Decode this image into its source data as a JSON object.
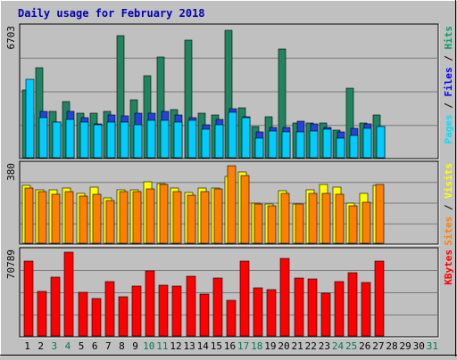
{
  "chart_data": {
    "type": "bar",
    "title": "Daily usage for February 2018",
    "x": [
      "1",
      "2",
      "3",
      "4",
      "5",
      "6",
      "7",
      "8",
      "9",
      "10",
      "11",
      "12",
      "13",
      "14",
      "15",
      "16",
      "17",
      "18",
      "19",
      "20",
      "21",
      "22",
      "23",
      "24",
      "25",
      "26",
      "27",
      "28",
      "29",
      "30",
      "31"
    ],
    "weekend_days": [
      "3",
      "4",
      "10",
      "11",
      "17",
      "18",
      "24",
      "25",
      "31"
    ],
    "panels": [
      {
        "name": "hits_files_pages",
        "ymax": 6703,
        "ymax_label": "6703",
        "right_label": [
          {
            "text": "Pages",
            "color": "#00e0ff"
          },
          {
            "text": " / ",
            "color": "#000000"
          },
          {
            "text": "Files",
            "color": "#0000ff"
          },
          {
            "text": " / ",
            "color": "#000000"
          },
          {
            "text": "Hits",
            "color": "#00a060"
          }
        ],
        "series": [
          {
            "name": "Hits",
            "color": "#1f8560",
            "values": [
              3500,
              4650,
              2420,
              2920,
              2320,
              2320,
              2420,
              6350,
              3000,
              4260,
              5240,
              2500,
              6100,
              2320,
              2220,
              6600,
              2600,
              1620,
              2120,
              5650,
              1820,
              1820,
              1820,
              1420,
              3600,
              1820,
              2200,
              null,
              null,
              null,
              null
            ]
          },
          {
            "name": "Files",
            "color": "#2244dd",
            "values": [
              2250,
              2400,
              1850,
              2400,
              2100,
              1750,
              2200,
              2180,
              2300,
              2300,
              2400,
              2200,
              2100,
              1700,
              2000,
              2520,
              2120,
              1350,
              1560,
              1560,
              1900,
              1740,
              1560,
              1340,
              1540,
              1740,
              1620,
              null,
              null,
              null,
              null
            ]
          },
          {
            "name": "Pages",
            "color": "#00ccff",
            "values": [
              4050,
              2100,
              1870,
              2000,
              1870,
              1700,
              1870,
              1830,
              1710,
              1930,
              1930,
              1870,
              1920,
              1500,
              1700,
              2360,
              2060,
              1000,
              1400,
              1340,
              1360,
              1400,
              1460,
              1000,
              1140,
              1540,
              1600,
              null,
              null,
              null,
              null
            ]
          }
        ]
      },
      {
        "name": "visits_sites",
        "ymax": 380,
        "ymax_label": "380",
        "right_label": [
          {
            "text": "Sites",
            "color": "#ff8000"
          },
          {
            "text": " / ",
            "color": "#000000"
          },
          {
            "text": "Visits",
            "color": "#ffff00"
          }
        ],
        "series": [
          {
            "name": "Visits",
            "color": "#ffff00",
            "values": [
              282,
              263,
              263,
              270,
              243,
              275,
              224,
              262,
              263,
              302,
              294,
              270,
              250,
              270,
              270,
              328,
              350,
              197,
              193,
              256,
              193,
              260,
              287,
              273,
              196,
              243,
              283,
              null,
              null,
              null,
              null
            ]
          },
          {
            "name": "Sites",
            "color": "#ff8000",
            "values": [
              270,
              255,
              240,
              255,
              233,
              242,
              210,
              255,
              255,
              268,
              290,
              255,
              235,
              253,
              265,
              380,
              330,
              190,
              185,
              243,
              190,
              246,
              243,
              240,
              183,
              200,
              290,
              null,
              null,
              null,
              null
            ]
          }
        ]
      },
      {
        "name": "kbytes",
        "ymax": 70789,
        "ymax_label": "70789",
        "right_label": [
          {
            "text": "KBytes",
            "color": "#ff0000"
          }
        ],
        "series": [
          {
            "name": "KBytes",
            "color": "#ff0000",
            "values": [
              63000,
              37600,
              49600,
              71000,
              36700,
              31500,
              45600,
              33000,
              42000,
              54700,
              43000,
              42500,
              50100,
              35700,
              49300,
              30300,
              63000,
              41000,
              39500,
              65300,
              49300,
              48400,
              35800,
              45700,
              53800,
              45500,
              63500,
              null,
              null,
              null,
              null
            ]
          }
        ]
      }
    ]
  }
}
